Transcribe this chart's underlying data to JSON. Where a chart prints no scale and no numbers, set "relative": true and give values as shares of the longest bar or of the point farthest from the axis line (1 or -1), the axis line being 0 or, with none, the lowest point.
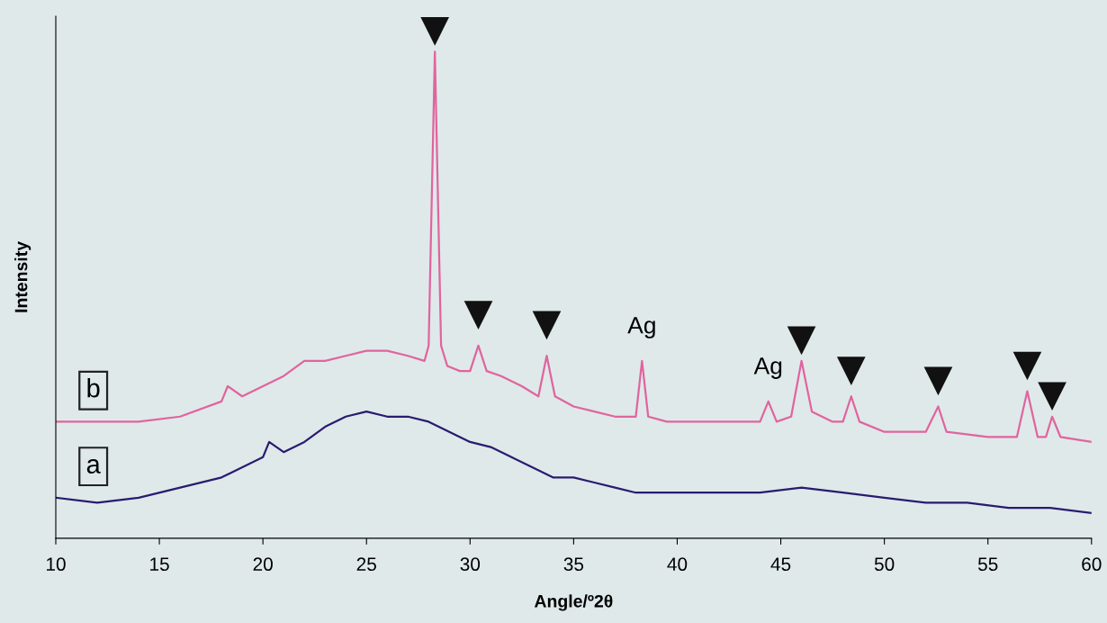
{
  "chart_data": {
    "type": "line",
    "relative": true,
    "xlabel": "Angle/º2θ",
    "ylabel": "Intensity",
    "xlim": [
      10,
      60
    ],
    "xticks": [
      10,
      15,
      20,
      25,
      30,
      35,
      40,
      45,
      50,
      55,
      60
    ],
    "grid": false,
    "marker": "none",
    "line_style": "solid",
    "series": [
      {
        "name": "b",
        "color": "#e0649f",
        "x": [
          10,
          12,
          14,
          16,
          18,
          18.3,
          19,
          20,
          21,
          22,
          23,
          24,
          25,
          26,
          27,
          27.8,
          28.0,
          28.3,
          28.6,
          28.9,
          29.5,
          30.0,
          30.4,
          30.8,
          31.5,
          32.5,
          33.3,
          33.7,
          34.1,
          35,
          36,
          37,
          38.0,
          38.3,
          38.6,
          39.5,
          41,
          43,
          44.0,
          44.4,
          44.8,
          45.5,
          46.0,
          46.5,
          47.5,
          48.0,
          48.4,
          48.8,
          50,
          52,
          52.6,
          53,
          55,
          56.4,
          56.9,
          57.4,
          57.8,
          58.1,
          58.5,
          60
        ],
        "values": [
          0.23,
          0.23,
          0.23,
          0.24,
          0.27,
          0.3,
          0.28,
          0.3,
          0.32,
          0.35,
          0.35,
          0.36,
          0.37,
          0.37,
          0.36,
          0.35,
          0.38,
          0.96,
          0.38,
          0.34,
          0.33,
          0.33,
          0.38,
          0.33,
          0.32,
          0.3,
          0.28,
          0.36,
          0.28,
          0.26,
          0.25,
          0.24,
          0.24,
          0.35,
          0.24,
          0.23,
          0.23,
          0.23,
          0.23,
          0.27,
          0.23,
          0.24,
          0.35,
          0.25,
          0.23,
          0.23,
          0.28,
          0.23,
          0.21,
          0.21,
          0.26,
          0.21,
          0.2,
          0.2,
          0.29,
          0.2,
          0.2,
          0.24,
          0.2,
          0.19
        ]
      },
      {
        "name": "a",
        "color": "#2a1b70",
        "x": [
          10,
          12,
          14,
          16,
          18,
          20,
          20.3,
          21,
          22,
          23,
          24,
          25,
          26,
          27,
          28,
          29,
          30,
          31,
          32,
          33,
          34,
          35,
          36,
          37,
          38,
          40,
          42,
          44,
          46,
          48,
          50,
          52,
          54,
          56,
          58,
          60
        ],
        "values": [
          0.08,
          0.07,
          0.08,
          0.1,
          0.12,
          0.16,
          0.19,
          0.17,
          0.19,
          0.22,
          0.24,
          0.25,
          0.24,
          0.24,
          0.23,
          0.21,
          0.19,
          0.18,
          0.16,
          0.14,
          0.12,
          0.12,
          0.11,
          0.1,
          0.09,
          0.09,
          0.09,
          0.09,
          0.1,
          0.09,
          0.08,
          0.07,
          0.07,
          0.06,
          0.06,
          0.05
        ]
      },
      {
        "type": "scatter",
        "marker": "triangle",
        "color": "#111111",
        "x": [
          28.3,
          30.4,
          33.7,
          46.0,
          48.4,
          52.6,
          56.9,
          58.1
        ],
        "values": [
          1,
          0.44,
          0.42,
          0.39,
          0.33,
          0.31,
          0.34,
          0.28
        ]
      }
    ],
    "annotations": [
      {
        "text": "Ag",
        "x": 38.3,
        "y": 0.35
      },
      {
        "text": "Ag",
        "x": 44.4,
        "y": 0.27
      }
    ]
  }
}
